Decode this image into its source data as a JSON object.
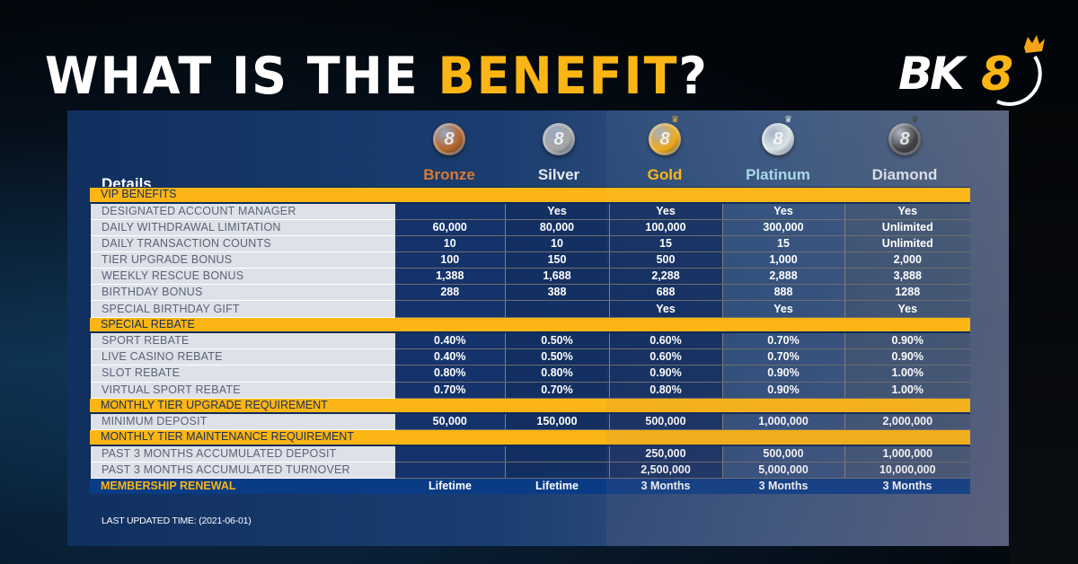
{
  "headline": {
    "prefix": "WHAT IS THE ",
    "accent": "BENEFIT",
    "suffix": "?"
  },
  "logo": {
    "text": "BK",
    "number": "8",
    "icon": "crown-icon"
  },
  "colors": {
    "accent": "#fbb514",
    "panel": "#15336b",
    "section_bar": "#fbb514",
    "renewal_bar": "#0a3c86",
    "label_bg": "#dfe1e8"
  },
  "table": {
    "details_title": "Details",
    "tiers": [
      {
        "name": "Bronze",
        "color": "#d97a33",
        "medal": "#b5652c",
        "glyph": "8"
      },
      {
        "name": "Silver",
        "color": "#e6e8ee",
        "medal": "#a6a6a6",
        "glyph": "8"
      },
      {
        "name": "Gold",
        "color": "#fbb514",
        "medal": "#f0a611",
        "glyph": "8"
      },
      {
        "name": "Platinum",
        "color": "#a9d6ea",
        "medal": "#d8e3e6",
        "glyph": "8"
      },
      {
        "name": "Diamond",
        "color": "#d9dde6",
        "medal": "#3a3a3a",
        "glyph": "8"
      }
    ],
    "sections": [
      {
        "title": "VIP BENEFITS",
        "rows": [
          {
            "label": "DESIGNATED ACCOUNT MANAGER",
            "values": [
              "",
              "Yes",
              "Yes",
              "Yes",
              "Yes"
            ]
          },
          {
            "label": "DAILY WITHDRAWAL LIMITATION",
            "values": [
              "60,000",
              "80,000",
              "100,000",
              "300,000",
              "Unlimited"
            ]
          },
          {
            "label": "DAILY TRANSACTION COUNTS",
            "values": [
              "10",
              "10",
              "15",
              "15",
              "Unlimited"
            ]
          },
          {
            "label": "TIER UPGRADE BONUS",
            "values": [
              "100",
              "150",
              "500",
              "1,000",
              "2,000"
            ]
          },
          {
            "label": "WEEKLY RESCUE BONUS",
            "values": [
              "1,388",
              "1,688",
              "2,288",
              "2,888",
              "3,888"
            ]
          },
          {
            "label": "BIRTHDAY BONUS",
            "values": [
              "288",
              "388",
              "688",
              "888",
              "1288"
            ]
          },
          {
            "label": "SPECIAL BIRTHDAY GIFT",
            "values": [
              "",
              "",
              "Yes",
              "Yes",
              "Yes"
            ]
          }
        ]
      },
      {
        "title": "SPECIAL REBATE",
        "rows": [
          {
            "label": "SPORT REBATE",
            "values": [
              "0.40%",
              "0.50%",
              "0.60%",
              "0.70%",
              "0.90%"
            ]
          },
          {
            "label": "LIVE CASINO REBATE",
            "values": [
              "0.40%",
              "0.50%",
              "0.60%",
              "0.70%",
              "0.90%"
            ]
          },
          {
            "label": "SLOT REBATE",
            "values": [
              "0.80%",
              "0.80%",
              "0.90%",
              "0.90%",
              "1.00%"
            ]
          },
          {
            "label": "VIRTUAL SPORT REBATE",
            "values": [
              "0.70%",
              "0.70%",
              "0.80%",
              "0.90%",
              "1.00%"
            ]
          }
        ]
      },
      {
        "title": "MONTHLY TIER UPGRADE REQUIREMENT",
        "rows": [
          {
            "label": "MINIMUM DEPOSIT",
            "values": [
              "50,000",
              "150,000",
              "500,000",
              "1,000,000",
              "2,000,000"
            ]
          }
        ]
      },
      {
        "title": "MONTHLY TIER MAINTENANCE REQUIREMENT",
        "rows": [
          {
            "label": "PAST 3 MONTHS ACCUMULATED DEPOSIT",
            "values": [
              "",
              "",
              "250,000",
              "500,000",
              "1,000,000"
            ]
          },
          {
            "label": "PAST 3 MONTHS ACCUMULATED TURNOVER",
            "values": [
              "",
              "",
              "2,500,000",
              "5,000,000",
              "10,000,000"
            ]
          }
        ]
      }
    ],
    "renewal": {
      "label": "MEMBERSHIP RENEWAL",
      "values": [
        "Lifetime",
        "Lifetime",
        "3 Months",
        "3 Months",
        "3 Months"
      ]
    }
  },
  "footer": {
    "last_updated": "LAST UPDATED TIME: (2021-06-01)"
  }
}
